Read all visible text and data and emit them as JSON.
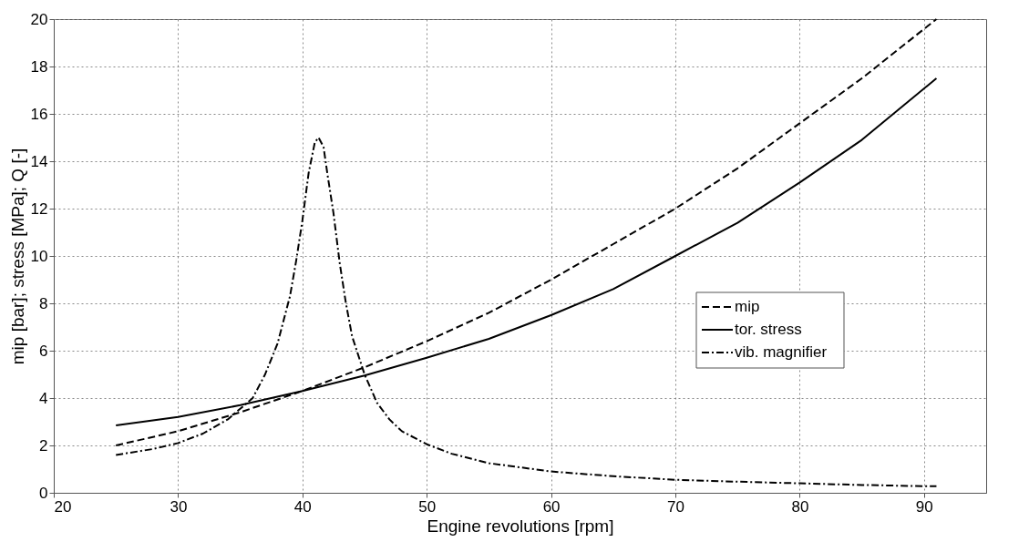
{
  "chart_data": {
    "type": "line",
    "xlabel": "Engine revolutions [rpm]",
    "ylabel": "mip [bar];   stress [MPa];   Q [-]",
    "xlim": [
      20,
      95
    ],
    "xticks": [
      20,
      30,
      40,
      50,
      60,
      70,
      80,
      90
    ],
    "ylim": [
      0,
      20
    ],
    "yticks": [
      0,
      2,
      4,
      6,
      8,
      10,
      12,
      14,
      16,
      18,
      20
    ],
    "grid": true,
    "legend": "right",
    "marker": "none",
    "series": [
      {
        "name": "mip",
        "color": "#000000",
        "line_style": "dashed",
        "x": [
          25,
          30,
          35,
          40,
          45,
          50,
          55,
          60,
          65,
          70,
          75,
          80,
          85,
          91
        ],
        "values": [
          2.0,
          2.6,
          3.4,
          4.3,
          5.3,
          6.4,
          7.6,
          9.0,
          10.5,
          12.0,
          13.7,
          15.6,
          17.5,
          20.0
        ]
      },
      {
        "name": "tor. stress",
        "color": "#000000",
        "line_style": "solid",
        "x": [
          25,
          30,
          35,
          40,
          45,
          50,
          55,
          60,
          65,
          70,
          75,
          80,
          85,
          91
        ],
        "values": [
          2.85,
          3.2,
          3.7,
          4.3,
          4.95,
          5.7,
          6.5,
          7.5,
          8.6,
          10.0,
          11.4,
          13.1,
          14.9,
          17.5
        ]
      },
      {
        "name": "vib. magnifier",
        "color": "#000000",
        "line_style": "dashdot",
        "x": [
          25,
          28,
          30,
          32,
          34,
          36,
          37,
          38,
          39,
          39.5,
          40,
          40.5,
          41,
          41.3,
          41.7,
          42,
          42.5,
          43,
          43.5,
          44,
          45,
          46,
          47,
          48,
          50,
          52,
          55,
          60,
          65,
          70,
          75,
          80,
          85,
          90,
          91
        ],
        "values": [
          1.6,
          1.85,
          2.1,
          2.5,
          3.1,
          4.0,
          5.0,
          6.3,
          8.3,
          9.8,
          11.5,
          13.5,
          14.8,
          15.0,
          14.6,
          13.5,
          11.8,
          9.7,
          8.0,
          6.6,
          5.0,
          3.8,
          3.1,
          2.6,
          2.05,
          1.65,
          1.25,
          0.9,
          0.7,
          0.55,
          0.47,
          0.4,
          0.33,
          0.28,
          0.28
        ]
      }
    ]
  }
}
